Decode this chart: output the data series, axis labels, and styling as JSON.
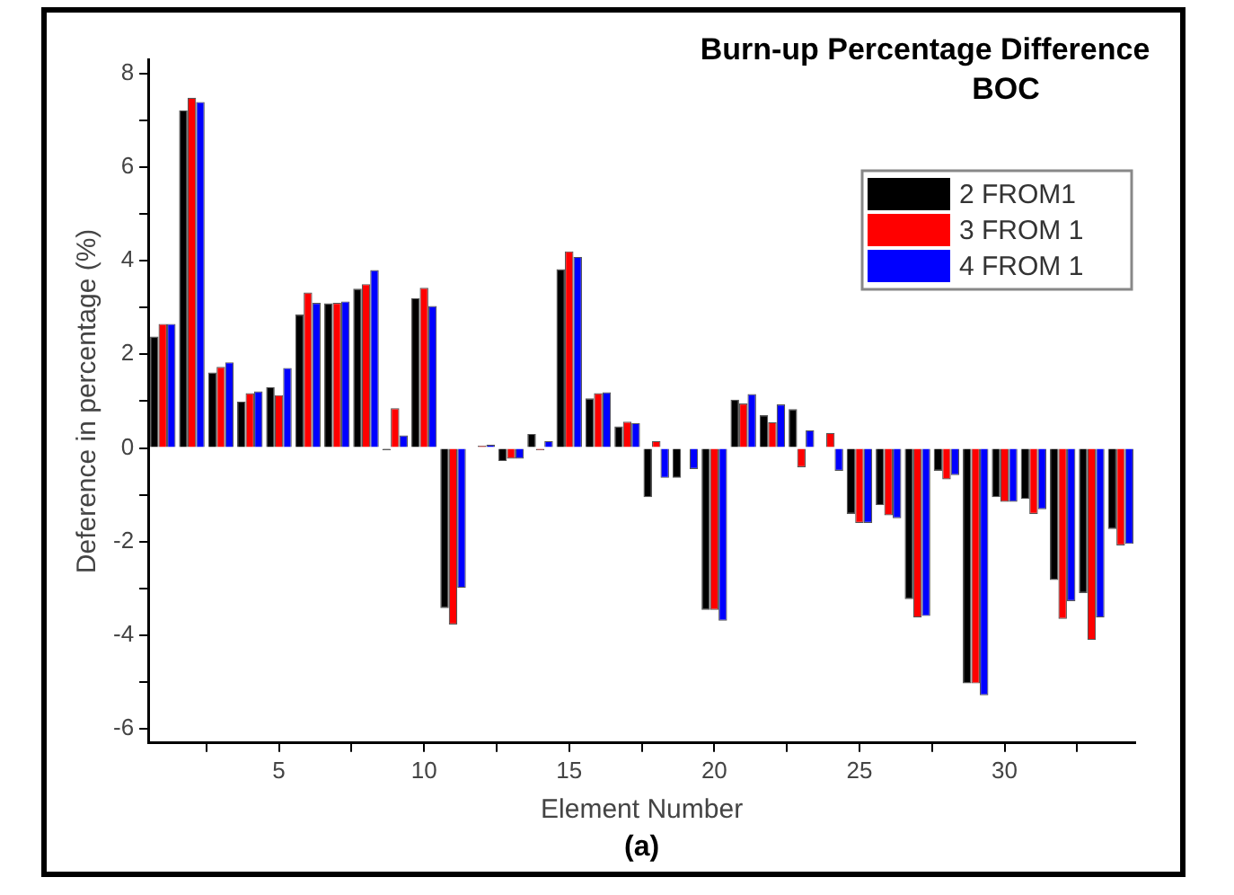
{
  "chart_data": {
    "type": "bar",
    "title": "Burn-up Percentage Difference",
    "subtitle": "BOC",
    "xlabel": "Element Number",
    "ylabel": "Deference in percentage (%)",
    "annotations": [
      "(a)"
    ],
    "x": [
      1,
      2,
      3,
      4,
      5,
      6,
      7,
      8,
      9,
      10,
      11,
      12,
      13,
      14,
      15,
      16,
      17,
      18,
      19,
      20,
      21,
      22,
      23,
      24,
      25,
      26,
      27,
      28,
      29,
      30,
      31,
      32,
      33,
      34
    ],
    "series": [
      {
        "name": "2 FROM1",
        "color": "#000000",
        "values": [
          2.38,
          7.21,
          1.61,
          0.99,
          1.3,
          2.85,
          3.09,
          3.4,
          -0.05,
          3.2,
          -3.42,
          0.02,
          -0.28,
          0.3,
          3.82,
          1.06,
          0.46,
          -1.05,
          -0.64,
          -3.46,
          1.03,
          0.7,
          0.83,
          0,
          -1.41,
          -1.22,
          -3.23,
          -0.49,
          -5.03,
          -1.05,
          -1.09,
          -2.82,
          -3.1,
          -1.73
        ]
      },
      {
        "name": "3 FROM 1",
        "color": "#ff0000",
        "values": [
          2.65,
          7.48,
          1.73,
          1.17,
          1.13,
          3.32,
          3.1,
          3.5,
          0.85,
          3.42,
          -3.77,
          0.05,
          -0.23,
          -0.05,
          4.2,
          1.17,
          0.56,
          0.15,
          0,
          -3.46,
          0.95,
          0.55,
          -0.41,
          0.32,
          -1.6,
          -1.44,
          -3.62,
          -0.67,
          -5.03,
          -1.15,
          -1.41,
          -3.65,
          -4.1,
          -2.08
        ]
      },
      {
        "name": "4 FROM 1",
        "color": "#0000ff",
        "values": [
          2.65,
          7.39,
          1.83,
          1.21,
          1.71,
          3.1,
          3.13,
          3.8,
          0.27,
          3.03,
          -2.99,
          0.07,
          -0.23,
          0.15,
          4.08,
          1.19,
          0.53,
          -0.64,
          -0.45,
          -3.69,
          1.15,
          0.93,
          0.38,
          -0.49,
          -1.6,
          -1.5,
          -3.59,
          -0.58,
          -5.28,
          -1.15,
          -1.31,
          -3.27,
          -3.62,
          -2.05
        ]
      }
    ],
    "xlim": [
      0.5,
      34.5
    ],
    "xticks": [
      {
        "value": 2.5,
        "label": null
      },
      5,
      {
        "value": 7.5,
        "label": null
      },
      10,
      {
        "value": 12.5,
        "label": null
      },
      15,
      {
        "value": 17.5,
        "label": null
      },
      20,
      {
        "value": 22.5,
        "label": null
      },
      25,
      {
        "value": 27.5,
        "label": null
      },
      30,
      {
        "value": 32.5,
        "label": null
      }
    ],
    "ylim": [
      -6.3,
      8.3
    ],
    "yticks": [
      -6,
      {
        "value": -5,
        "label": null
      },
      -4,
      {
        "value": -3,
        "label": null
      },
      -2,
      {
        "value": -1,
        "label": null
      },
      0,
      {
        "value": 1,
        "label": null
      },
      2,
      {
        "value": 3,
        "label": null
      },
      4,
      {
        "value": 5,
        "label": null
      },
      6,
      {
        "value": 7,
        "label": null
      },
      8
    ],
    "grid": false,
    "legend": "top right"
  }
}
